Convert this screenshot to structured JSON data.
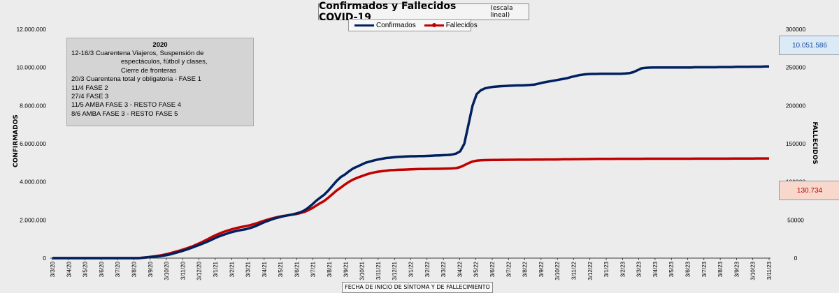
{
  "title": {
    "main": "Confirmados  y Fallecidos  COVID-19",
    "sub": "(escala lineal)"
  },
  "legend": {
    "confirmados": "Confirmados",
    "fallecidos": "Fallecidos"
  },
  "axes": {
    "y_left_label": "CONFIRMADOS",
    "y_right_label": "FALLECIDOS",
    "x_label": "FECHA DE INICIO  DE SÍNTOMA  Y DE FALLECIMIENTO"
  },
  "info_box": {
    "title": "2020",
    "lines": [
      "12-16/3  Cuarentena Viajeros, Suspensión de",
      "espectáculos, fútbol y clases,",
      "Cierre de fronteras",
      "20/3  Cuarentena total y obligatoria - FASE 1",
      "11/4  FASE 2",
      "27/4  FASE 3",
      "11/5  AMBA FASE 3 - RESTO FASE 4",
      "8/6  AMBA FASE 3 - RESTO FASE 5"
    ]
  },
  "value_boxes": {
    "confirmados": "10.051.586",
    "fallecidos": "130.734"
  },
  "colors": {
    "confirmados": "#002060",
    "fallecidos": "#c00000",
    "background": "#ececec"
  },
  "chart_data": {
    "type": "line",
    "title": "Confirmados  y Fallecidos  COVID-19",
    "xlabel": "FECHA DE INICIO  DE SÍNTOMA  Y DE FALLECIMIENTO",
    "ylabel": "CONFIRMADOS",
    "y2label": "FALLECIDOS",
    "ylim": [
      0,
      12000000
    ],
    "y2lim": [
      0,
      300000
    ],
    "y_ticks": [
      "0",
      "2.000.000",
      "4.000.000",
      "6.000.000",
      "8.000.000",
      "10.000.000",
      "12.000.000"
    ],
    "y2_ticks": [
      "0",
      "50000",
      "100000",
      "150000",
      "200000",
      "250000",
      "300000"
    ],
    "x_ticks": [
      "3/3/20",
      "3/4/20",
      "3/5/20",
      "3/6/20",
      "3/7/20",
      "3/8/20",
      "3/9/20",
      "3/10/20",
      "3/11/20",
      "3/12/20",
      "3/1/21",
      "3/2/21",
      "3/3/21",
      "3/4/21",
      "3/5/21",
      "3/6/21",
      "3/7/21",
      "3/8/21",
      "3/9/21",
      "3/10/21",
      "3/11/21",
      "3/12/21",
      "3/1/22",
      "3/2/22",
      "3/3/22",
      "3/4/22",
      "3/5/22",
      "3/6/22",
      "3/7/22",
      "3/8/22",
      "3/9/22",
      "3/10/22",
      "3/11/22",
      "3/12/22",
      "3/1/23",
      "3/2/23",
      "3/3/23",
      "3/4/23",
      "3/5/23",
      "3/6/23",
      "3/7/23",
      "3/8/23",
      "3/9/23",
      "3/10/23",
      "3/11/23"
    ],
    "grid": false,
    "legend_position": "top-center",
    "series": [
      {
        "name": "Confirmados",
        "axis": "left",
        "values": [
          0,
          0,
          0,
          0,
          0,
          0,
          0,
          0,
          0,
          0,
          0,
          0,
          0,
          0,
          0,
          0,
          0,
          0,
          0,
          0,
          0,
          0,
          20000,
          40000,
          60000,
          80000,
          100000,
          130000,
          170000,
          220000,
          280000,
          340000,
          410000,
          480000,
          560000,
          640000,
          720000,
          810000,
          900000,
          1000000,
          1100000,
          1180000,
          1260000,
          1330000,
          1390000,
          1440000,
          1480000,
          1520000,
          1580000,
          1650000,
          1740000,
          1840000,
          1930000,
          2010000,
          2080000,
          2140000,
          2190000,
          2240000,
          2280000,
          2330000,
          2390000,
          2480000,
          2620000,
          2800000,
          3000000,
          3170000,
          3330000,
          3550000,
          3800000,
          4050000,
          4250000,
          4380000,
          4550000,
          4700000,
          4800000,
          4900000,
          5000000,
          5060000,
          5120000,
          5170000,
          5210000,
          5250000,
          5270000,
          5290000,
          5310000,
          5320000,
          5330000,
          5340000,
          5340000,
          5350000,
          5350000,
          5360000,
          5370000,
          5380000,
          5390000,
          5400000,
          5410000,
          5430000,
          5480000,
          5600000,
          6000000,
          7000000,
          8000000,
          8600000,
          8800000,
          8900000,
          8950000,
          8980000,
          9000000,
          9020000,
          9030000,
          9040000,
          9050000,
          9060000,
          9060000,
          9070000,
          9080000,
          9100000,
          9150000,
          9200000,
          9240000,
          9280000,
          9320000,
          9360000,
          9400000,
          9440000,
          9500000,
          9550000,
          9600000,
          9630000,
          9650000,
          9660000,
          9660000,
          9670000,
          9670000,
          9670000,
          9670000,
          9670000,
          9670000,
          9680000,
          9700000,
          9750000,
          9850000,
          9950000,
          9980000,
          9990000,
          10000000,
          10000000,
          10000000,
          10000000,
          10000000,
          10000000,
          10000000,
          10000000,
          10000000,
          10000000,
          10010000,
          10010000,
          10010000,
          10010000,
          10010000,
          10010000,
          10020000,
          10020000,
          10020000,
          10020000,
          10030000,
          10030000,
          10030000,
          10030000,
          10040000,
          10040000,
          10040000,
          10050000,
          10051586
        ]
      },
      {
        "name": "Fallecidos",
        "axis": "right",
        "values": [
          0,
          0,
          0,
          0,
          0,
          0,
          0,
          0,
          0,
          0,
          0,
          0,
          0,
          0,
          0,
          0,
          0,
          0,
          0,
          0,
          0,
          0,
          700,
          1200,
          1800,
          2600,
          3400,
          4400,
          5600,
          7000,
          8500,
          10000,
          11700,
          13500,
          15500,
          17800,
          20300,
          23000,
          25700,
          28500,
          31000,
          33200,
          35200,
          36900,
          38500,
          39800,
          41000,
          42000,
          43200,
          44700,
          46400,
          48300,
          50000,
          51600,
          53000,
          54200,
          55200,
          56000,
          56800,
          57600,
          58800,
          60300,
          62500,
          65300,
          68700,
          72000,
          75000,
          79300,
          84000,
          88600,
          92500,
          96400,
          100000,
          103000,
          105300,
          107300,
          109200,
          110900,
          112200,
          113300,
          114000,
          114600,
          115200,
          115500,
          115800,
          116000,
          116200,
          116400,
          116600,
          116800,
          116900,
          117000,
          117100,
          117100,
          117200,
          117300,
          117400,
          117600,
          118000,
          119400,
          121800,
          124500,
          126700,
          127800,
          128300,
          128500,
          128600,
          128700,
          128800,
          128900,
          128900,
          129000,
          129000,
          129100,
          129100,
          129100,
          129100,
          129200,
          129200,
          129200,
          129300,
          129300,
          129300,
          129400,
          129600,
          129700,
          129700,
          129800,
          129800,
          129900,
          129900,
          130000,
          130100,
          130100,
          130100,
          130100,
          130100,
          130200,
          130200,
          130200,
          130200,
          130200,
          130200,
          130200,
          130300,
          130300,
          130300,
          130300,
          130300,
          130300,
          130300,
          130300,
          130300,
          130300,
          130300,
          130300,
          130400,
          130400,
          130400,
          130400,
          130400,
          130400,
          130400,
          130400,
          130400,
          130500,
          130500,
          130600,
          130600,
          130600,
          130600,
          130700,
          130700,
          130700,
          130734
        ]
      }
    ]
  }
}
